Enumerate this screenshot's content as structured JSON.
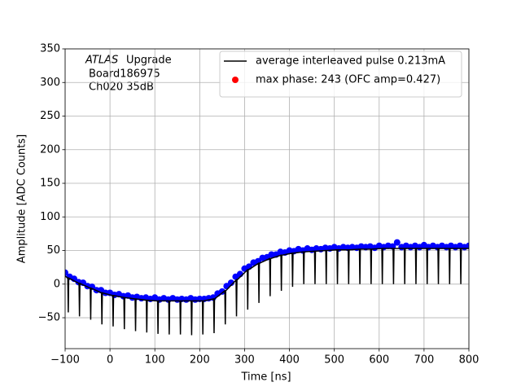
{
  "chart_data": {
    "type": "line",
    "xlabel": "Time [ns]",
    "ylabel": "Amplitude [ADC Counts]",
    "annotations": [
      "ATLAS",
      "Upgrade",
      "Board186975",
      "Ch020 35dB"
    ],
    "xlim": [
      -100,
      800
    ],
    "xticks": [
      {
        "value": -100,
        "label": "−100"
      },
      0,
      100,
      200,
      300,
      400,
      500,
      600,
      700,
      800
    ],
    "ylim": [
      -96,
      350
    ],
    "yticks": [
      {
        "value": -50,
        "label": "−50"
      },
      0,
      50,
      100,
      150,
      200,
      250,
      300,
      350
    ],
    "grid": true,
    "legend": "upper right",
    "series": [
      {
        "name": "average interleaved pulse 0.213mA",
        "color": "#000000",
        "type": "line",
        "x": [
          -100,
          -94,
          -93,
          -92,
          -69,
          -68,
          -67,
          -44,
          -43,
          -42,
          -19,
          -18,
          -17,
          6,
          7,
          8,
          31,
          32,
          33,
          56,
          57,
          58,
          81,
          82,
          83,
          106,
          107,
          108,
          131,
          132,
          133,
          156,
          157,
          158,
          181,
          182,
          183,
          206,
          207,
          208,
          231,
          232,
          233,
          256,
          257,
          258,
          281,
          282,
          283,
          306,
          307,
          308,
          331,
          332,
          333,
          356,
          357,
          358,
          381,
          382,
          383,
          406,
          407,
          408,
          431,
          432,
          433,
          456,
          457,
          458,
          481,
          482,
          483,
          506,
          507,
          508,
          531,
          532,
          533,
          556,
          557,
          558,
          581,
          582,
          583,
          606,
          607,
          608,
          631,
          632,
          633,
          656,
          657,
          658,
          681,
          682,
          683,
          706,
          707,
          708,
          731,
          732,
          733,
          756,
          757,
          758,
          781,
          782,
          783,
          800
        ],
        "values": [
          12,
          9,
          -42,
          9,
          1,
          -48,
          1,
          -6,
          -53,
          -6,
          -13,
          -60,
          -13,
          -17,
          -63,
          -17,
          -20,
          -67,
          -20,
          -22,
          -70,
          -22,
          -24,
          -72,
          -24,
          -25,
          -74,
          -25,
          -25,
          -75,
          -25,
          -25,
          -75,
          -25,
          -25,
          -76,
          -25,
          -25,
          -75,
          -25,
          -22,
          -73,
          -22,
          -10,
          -60,
          -10,
          6,
          -48,
          6,
          21,
          -38,
          21,
          31,
          -28,
          31,
          38,
          -18,
          38,
          43,
          -10,
          43,
          46,
          -4,
          46,
          48,
          0,
          48,
          49,
          0,
          49,
          50,
          0,
          50,
          51,
          0,
          51,
          51,
          0,
          51,
          52,
          0,
          52,
          52,
          0,
          52,
          53,
          0,
          53,
          53,
          0,
          53,
          53,
          0,
          53,
          53,
          0,
          53,
          53,
          0,
          53,
          53,
          0,
          53,
          53,
          0,
          53,
          53,
          0,
          53,
          53
        ]
      },
      {
        "name": "",
        "color": "#0000ff",
        "type": "scatter",
        "x": [
          -100,
          -90,
          -80,
          -70,
          -60,
          -50,
          -40,
          -30,
          -20,
          -10,
          0,
          10,
          20,
          30,
          40,
          50,
          60,
          70,
          80,
          90,
          100,
          110,
          120,
          130,
          140,
          150,
          160,
          170,
          180,
          190,
          200,
          210,
          220,
          230,
          240,
          250,
          260,
          270,
          280,
          290,
          300,
          310,
          320,
          330,
          340,
          350,
          360,
          370,
          380,
          390,
          400,
          410,
          420,
          430,
          440,
          450,
          460,
          470,
          480,
          490,
          500,
          510,
          520,
          530,
          540,
          550,
          560,
          570,
          580,
          590,
          600,
          610,
          620,
          630,
          640,
          650,
          660,
          670,
          680,
          690,
          700,
          710,
          720,
          730,
          740,
          750,
          760,
          770,
          780,
          790,
          800
        ],
        "values": [
          17,
          11,
          8,
          3,
          2,
          -3,
          -4,
          -9,
          -9,
          -13,
          -13,
          -16,
          -15,
          -18,
          -17,
          -20,
          -19,
          -21,
          -20,
          -22,
          -20,
          -23,
          -21,
          -23,
          -21,
          -23,
          -22,
          -23,
          -21,
          -23,
          -22,
          -22,
          -21,
          -20,
          -14,
          -11,
          -3,
          2,
          11,
          15,
          23,
          26,
          32,
          34,
          39,
          40,
          44,
          44,
          48,
          47,
          50,
          49,
          52,
          50,
          53,
          51,
          53,
          52,
          54,
          53,
          55,
          53,
          55,
          54,
          55,
          54,
          56,
          55,
          56,
          54,
          57,
          55,
          57,
          56,
          62,
          55,
          57,
          55,
          57,
          55,
          58,
          55,
          57,
          55,
          57,
          55,
          57,
          55,
          57,
          55,
          57
        ]
      },
      {
        "name": "max phase: 243 (OFC amp=0.427)",
        "color": "#ff0000",
        "type": "scatter"
      }
    ]
  }
}
